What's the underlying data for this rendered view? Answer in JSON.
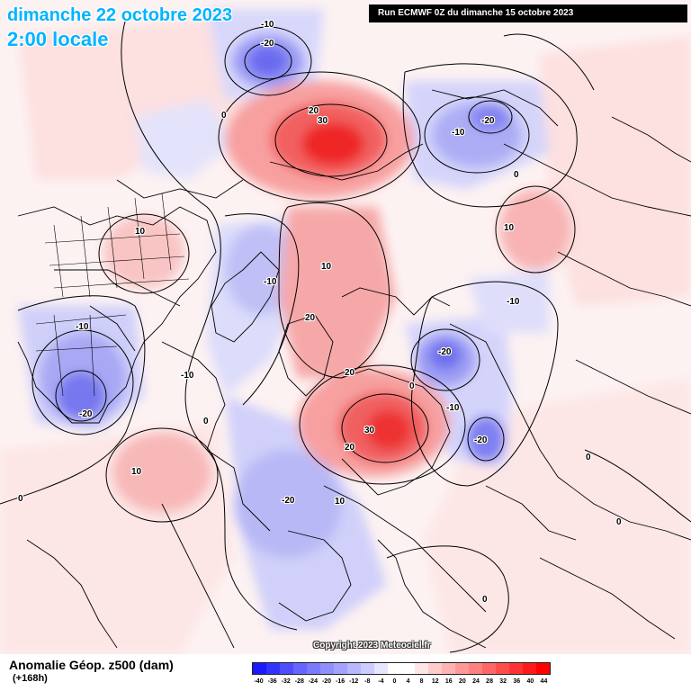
{
  "header": {
    "date": "dimanche 22 octobre 2023",
    "time": "2:00 locale",
    "run": "Run ECMWF 0Z du dimanche 15 octobre 2023"
  },
  "footer": {
    "title": "Anomalie Géop. z500 (dam)",
    "lead": "(+168h)",
    "copyright": "Copyright 2023 Meteociel.fr"
  },
  "legend": {
    "ticks": [
      "-40",
      "-36",
      "-32",
      "-28",
      "-24",
      "-20",
      "-16",
      "-12",
      "-8",
      "-4",
      "0",
      "4",
      "8",
      "12",
      "16",
      "20",
      "24",
      "28",
      "32",
      "36",
      "40",
      "44"
    ],
    "colors": [
      "#1a1aff",
      "#3333ff",
      "#4d4dff",
      "#6666ff",
      "#7a7aff",
      "#8f8fff",
      "#a3a3ff",
      "#b8b8ff",
      "#ccccff",
      "#e6e6ff",
      "#ffffff",
      "#ffffff",
      "#ffe6e6",
      "#ffcccc",
      "#ffb3b3",
      "#ff9999",
      "#ff8080",
      "#ff6666",
      "#ff4d4d",
      "#ff3333",
      "#ff1a1a",
      "#ff0000"
    ]
  },
  "contour_labels": [
    {
      "text": "-10"
    },
    {
      "text": "-20"
    },
    {
      "text": "0"
    },
    {
      "text": "20"
    },
    {
      "text": "30"
    },
    {
      "text": "-10"
    },
    {
      "text": "-20"
    },
    {
      "text": "0"
    },
    {
      "text": "10"
    },
    {
      "text": "10"
    },
    {
      "text": "10"
    },
    {
      "text": "-10"
    },
    {
      "text": "20"
    },
    {
      "text": "-10"
    },
    {
      "text": "-10"
    },
    {
      "text": "-20"
    },
    {
      "text": "-10"
    },
    {
      "text": "0"
    },
    {
      "text": "-20"
    },
    {
      "text": "0"
    },
    {
      "text": "20"
    },
    {
      "text": "-10"
    },
    {
      "text": "30"
    },
    {
      "text": "-20"
    },
    {
      "text": "20"
    },
    {
      "text": "10"
    },
    {
      "text": "0"
    },
    {
      "text": "-20"
    },
    {
      "text": "10"
    },
    {
      "text": "0"
    },
    {
      "text": "0"
    },
    {
      "text": "0"
    }
  ]
}
